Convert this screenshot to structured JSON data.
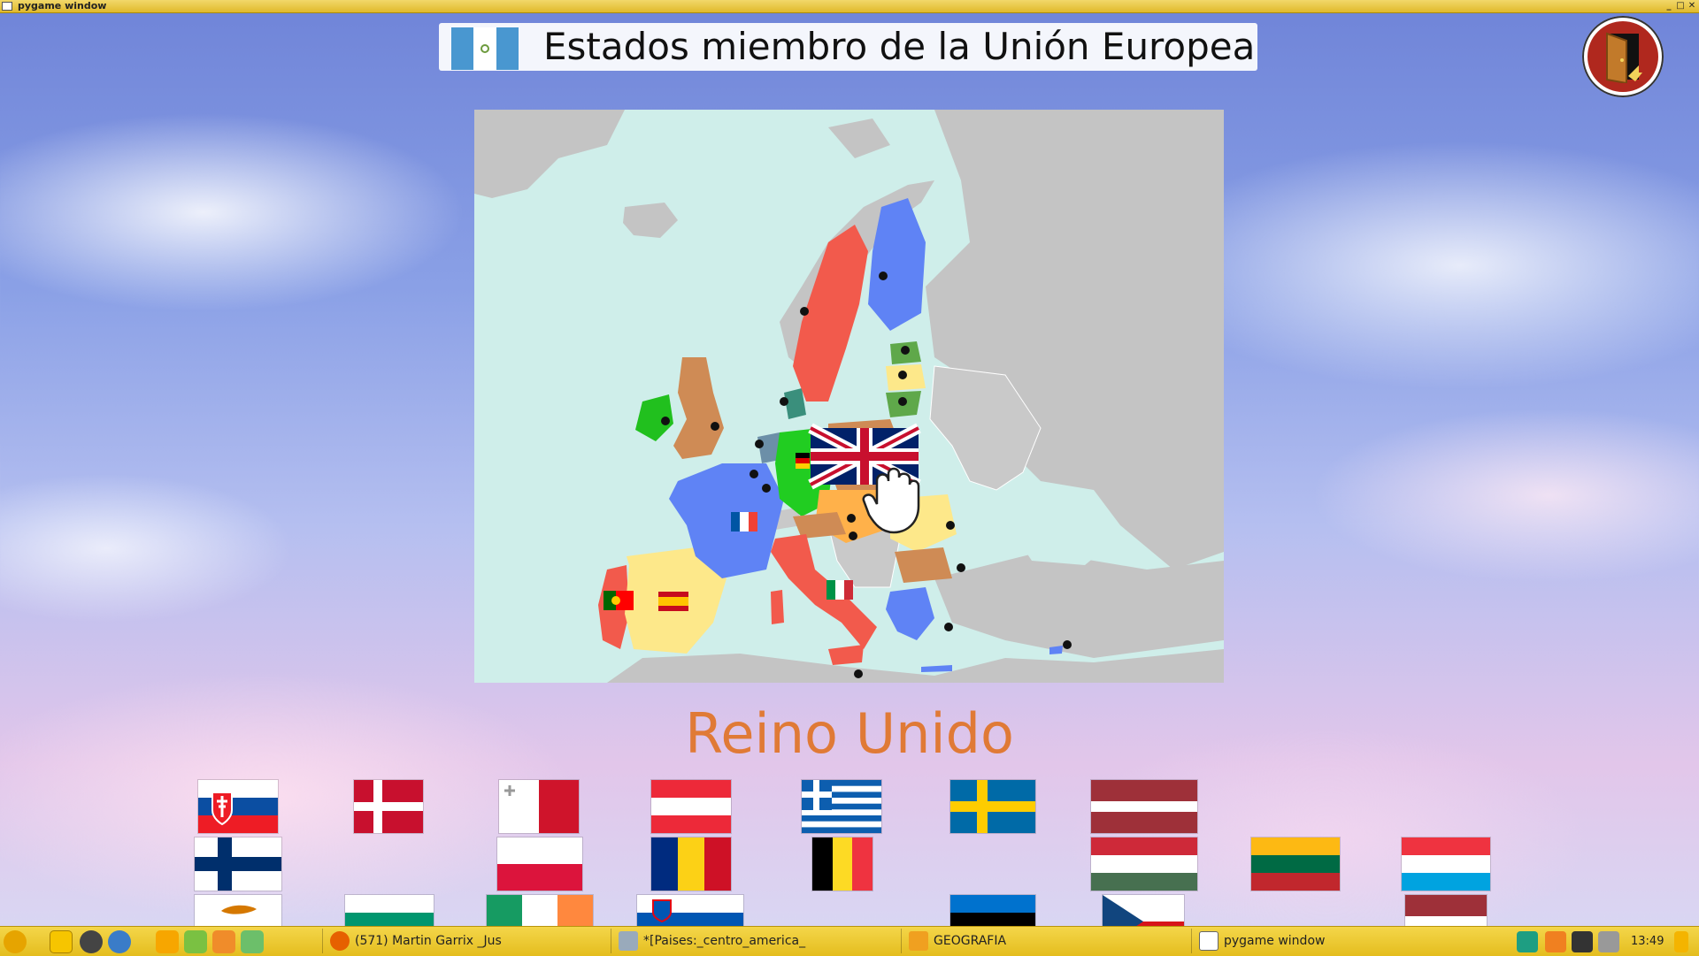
{
  "window": {
    "title": "pygame window"
  },
  "header": {
    "title": "Estados miembro de la Unión Europea",
    "language_flag_icon": "guatemala-flag-icon"
  },
  "exit_button": {
    "icon": "exit-door-icon"
  },
  "map": {
    "dragging_flag": "united-kingdom-flag",
    "cursor": "hand-grab-cursor"
  },
  "current_country": "Reino Unido",
  "flag_tray": {
    "rows": [
      [
        "slovakia",
        "denmark",
        "malta",
        "austria",
        "greece",
        "sweden",
        "latvia"
      ],
      [
        "finland",
        "poland",
        "romania",
        "belgium",
        "hungary",
        "lithuania",
        "luxembourg"
      ],
      [
        "cyprus",
        "bulgaria",
        "ireland",
        "slovenia",
        "estonia",
        "czech-republic",
        "latvia"
      ]
    ]
  },
  "taskbar": {
    "tasks": [
      {
        "label": "(571) Martin Garrix _Jus",
        "icon": "firefox-icon"
      },
      {
        "label": "*[Paises:_centro_america_",
        "icon": "image-editor-icon"
      },
      {
        "label": "GEOGRAFIA",
        "icon": "folder-icon"
      },
      {
        "label": "pygame window",
        "icon": "window-icon"
      }
    ],
    "clock": "13:49"
  }
}
